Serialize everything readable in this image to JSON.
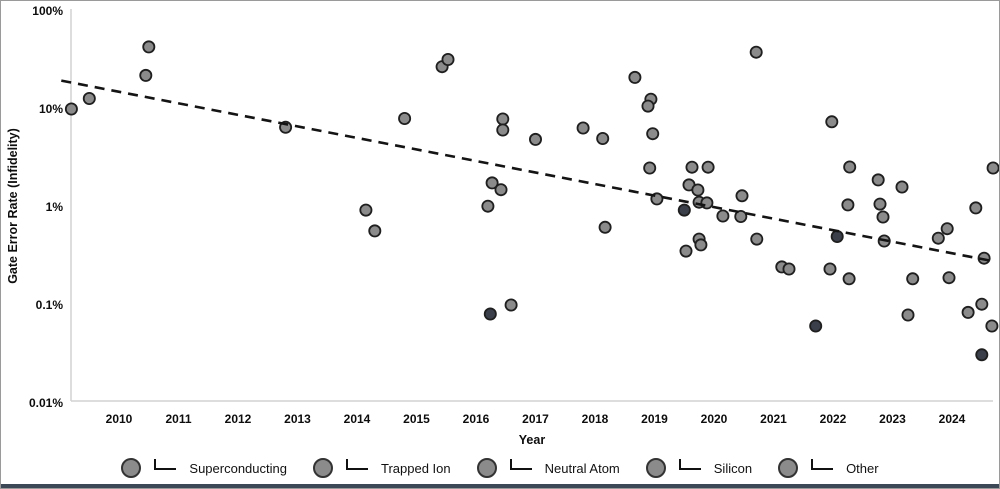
{
  "colors": {
    "marker_gray": "#8b8b8b",
    "marker_dark": "#3a3f4a",
    "marker_stroke": "#1f1f1f",
    "legend_marker": "#8b8b8b",
    "trend_line": "#141414",
    "spine": "#d2d2d2",
    "text": "#0d0d0d",
    "frame_border": "#9a9a9a",
    "bottom_bar": "#3d4857"
  },
  "legend": {
    "items": [
      {
        "label": "Superconducting"
      },
      {
        "label": "Trapped Ion"
      },
      {
        "label": "Neutral Atom"
      },
      {
        "label": "Silicon"
      },
      {
        "label": "Other"
      }
    ]
  },
  "chart_data": {
    "type": "scatter",
    "title": "",
    "xlabel": "Year",
    "ylabel": "Gate Error Rate (Infidelity)",
    "x_ticks": [
      2010,
      2011,
      2012,
      2013,
      2014,
      2015,
      2016,
      2017,
      2018,
      2019,
      2020,
      2021,
      2022,
      2023,
      2024
    ],
    "y_ticks": [
      {
        "label": "100%",
        "value": 100
      },
      {
        "label": "10%",
        "value": 10
      },
      {
        "label": "1%",
        "value": 1
      },
      {
        "label": "0.1%",
        "value": 0.1
      },
      {
        "label": "0.01%",
        "value": 0.01
      }
    ],
    "y_scale": "log",
    "x_range": [
      2009.05,
      2024.85
    ],
    "y_range_pct": [
      0.01,
      100
    ],
    "grid": false,
    "legend_position": "bottom",
    "trend_line": {
      "style": "dashed",
      "start": {
        "year": 2009.03,
        "value_pct": 19.5
      },
      "end": {
        "year": 2024.62,
        "value_pct": 0.285
      }
    },
    "points": [
      {
        "year": 2009.2,
        "value_pct": 10,
        "shade": "gray"
      },
      {
        "year": 2009.5,
        "value_pct": 12.8,
        "shade": "gray"
      },
      {
        "year": 2010.45,
        "value_pct": 22,
        "shade": "gray"
      },
      {
        "year": 2010.5,
        "value_pct": 43,
        "shade": "gray"
      },
      {
        "year": 2012.8,
        "value_pct": 6.5,
        "shade": "gray"
      },
      {
        "year": 2014.15,
        "value_pct": 0.93,
        "shade": "gray"
      },
      {
        "year": 2014.3,
        "value_pct": 0.57,
        "shade": "gray"
      },
      {
        "year": 2014.8,
        "value_pct": 8.0,
        "shade": "gray"
      },
      {
        "year": 2015.43,
        "value_pct": 27,
        "shade": "gray"
      },
      {
        "year": 2015.53,
        "value_pct": 32,
        "shade": "gray"
      },
      {
        "year": 2016.2,
        "value_pct": 1.02,
        "shade": "gray"
      },
      {
        "year": 2016.27,
        "value_pct": 1.76,
        "shade": "gray"
      },
      {
        "year": 2016.42,
        "value_pct": 1.5,
        "shade": "gray"
      },
      {
        "year": 2016.24,
        "value_pct": 0.081,
        "shade": "dark"
      },
      {
        "year": 2016.59,
        "value_pct": 0.1,
        "shade": "gray"
      },
      {
        "year": 2016.45,
        "value_pct": 7.9,
        "shade": "gray"
      },
      {
        "year": 2016.45,
        "value_pct": 6.1,
        "shade": "gray"
      },
      {
        "year": 2017.0,
        "value_pct": 4.9,
        "shade": "gray"
      },
      {
        "year": 2017.8,
        "value_pct": 6.4,
        "shade": "gray"
      },
      {
        "year": 2018.13,
        "value_pct": 5.0,
        "shade": "gray"
      },
      {
        "year": 2018.17,
        "value_pct": 0.62,
        "shade": "gray"
      },
      {
        "year": 2018.67,
        "value_pct": 21,
        "shade": "gray"
      },
      {
        "year": 2018.94,
        "value_pct": 12.6,
        "shade": "gray"
      },
      {
        "year": 2018.89,
        "value_pct": 10.7,
        "shade": "gray"
      },
      {
        "year": 2018.97,
        "value_pct": 5.6,
        "shade": "gray"
      },
      {
        "year": 2018.92,
        "value_pct": 2.5,
        "shade": "gray"
      },
      {
        "year": 2019.04,
        "value_pct": 1.21,
        "shade": "gray"
      },
      {
        "year": 2019.5,
        "value_pct": 0.93,
        "shade": "dark"
      },
      {
        "year": 2019.53,
        "value_pct": 0.355,
        "shade": "gray"
      },
      {
        "year": 2019.58,
        "value_pct": 1.68,
        "shade": "gray"
      },
      {
        "year": 2019.63,
        "value_pct": 2.55,
        "shade": "gray"
      },
      {
        "year": 2019.73,
        "value_pct": 1.49,
        "shade": "gray"
      },
      {
        "year": 2019.75,
        "value_pct": 1.12,
        "shade": "gray"
      },
      {
        "year": 2019.75,
        "value_pct": 0.47,
        "shade": "gray"
      },
      {
        "year": 2019.78,
        "value_pct": 0.41,
        "shade": "gray"
      },
      {
        "year": 2019.88,
        "value_pct": 1.1,
        "shade": "gray"
      },
      {
        "year": 2019.9,
        "value_pct": 2.55,
        "shade": "gray"
      },
      {
        "year": 2020.15,
        "value_pct": 0.81,
        "shade": "gray"
      },
      {
        "year": 2020.45,
        "value_pct": 0.8,
        "shade": "gray"
      },
      {
        "year": 2020.47,
        "value_pct": 1.3,
        "shade": "gray"
      },
      {
        "year": 2020.71,
        "value_pct": 38,
        "shade": "gray"
      },
      {
        "year": 2020.72,
        "value_pct": 0.47,
        "shade": "gray"
      },
      {
        "year": 2021.14,
        "value_pct": 0.245,
        "shade": "gray"
      },
      {
        "year": 2021.26,
        "value_pct": 0.233,
        "shade": "gray"
      },
      {
        "year": 2021.71,
        "value_pct": 0.061,
        "shade": "dark"
      },
      {
        "year": 2021.95,
        "value_pct": 0.233,
        "shade": "gray"
      },
      {
        "year": 2021.98,
        "value_pct": 7.4,
        "shade": "gray"
      },
      {
        "year": 2022.07,
        "value_pct": 0.5,
        "shade": "dark"
      },
      {
        "year": 2022.25,
        "value_pct": 1.05,
        "shade": "gray"
      },
      {
        "year": 2022.27,
        "value_pct": 0.185,
        "shade": "gray"
      },
      {
        "year": 2022.28,
        "value_pct": 2.56,
        "shade": "gray"
      },
      {
        "year": 2022.76,
        "value_pct": 1.89,
        "shade": "gray"
      },
      {
        "year": 2022.79,
        "value_pct": 1.07,
        "shade": "gray"
      },
      {
        "year": 2022.84,
        "value_pct": 0.79,
        "shade": "gray"
      },
      {
        "year": 2022.86,
        "value_pct": 0.45,
        "shade": "gray"
      },
      {
        "year": 2023.16,
        "value_pct": 1.6,
        "shade": "gray"
      },
      {
        "year": 2023.26,
        "value_pct": 0.079,
        "shade": "gray"
      },
      {
        "year": 2023.34,
        "value_pct": 0.185,
        "shade": "gray"
      },
      {
        "year": 2023.77,
        "value_pct": 0.48,
        "shade": "gray"
      },
      {
        "year": 2023.92,
        "value_pct": 0.6,
        "shade": "gray"
      },
      {
        "year": 2023.95,
        "value_pct": 0.19,
        "shade": "gray"
      },
      {
        "year": 2024.27,
        "value_pct": 0.084,
        "shade": "gray"
      },
      {
        "year": 2024.4,
        "value_pct": 0.98,
        "shade": "gray"
      },
      {
        "year": 2024.5,
        "value_pct": 0.102,
        "shade": "gray"
      },
      {
        "year": 2024.5,
        "value_pct": 0.031,
        "shade": "dark"
      },
      {
        "year": 2024.54,
        "value_pct": 0.3,
        "shade": "gray"
      },
      {
        "year": 2024.67,
        "value_pct": 0.061,
        "shade": "gray"
      },
      {
        "year": 2024.69,
        "value_pct": 2.5,
        "shade": "gray"
      }
    ]
  }
}
